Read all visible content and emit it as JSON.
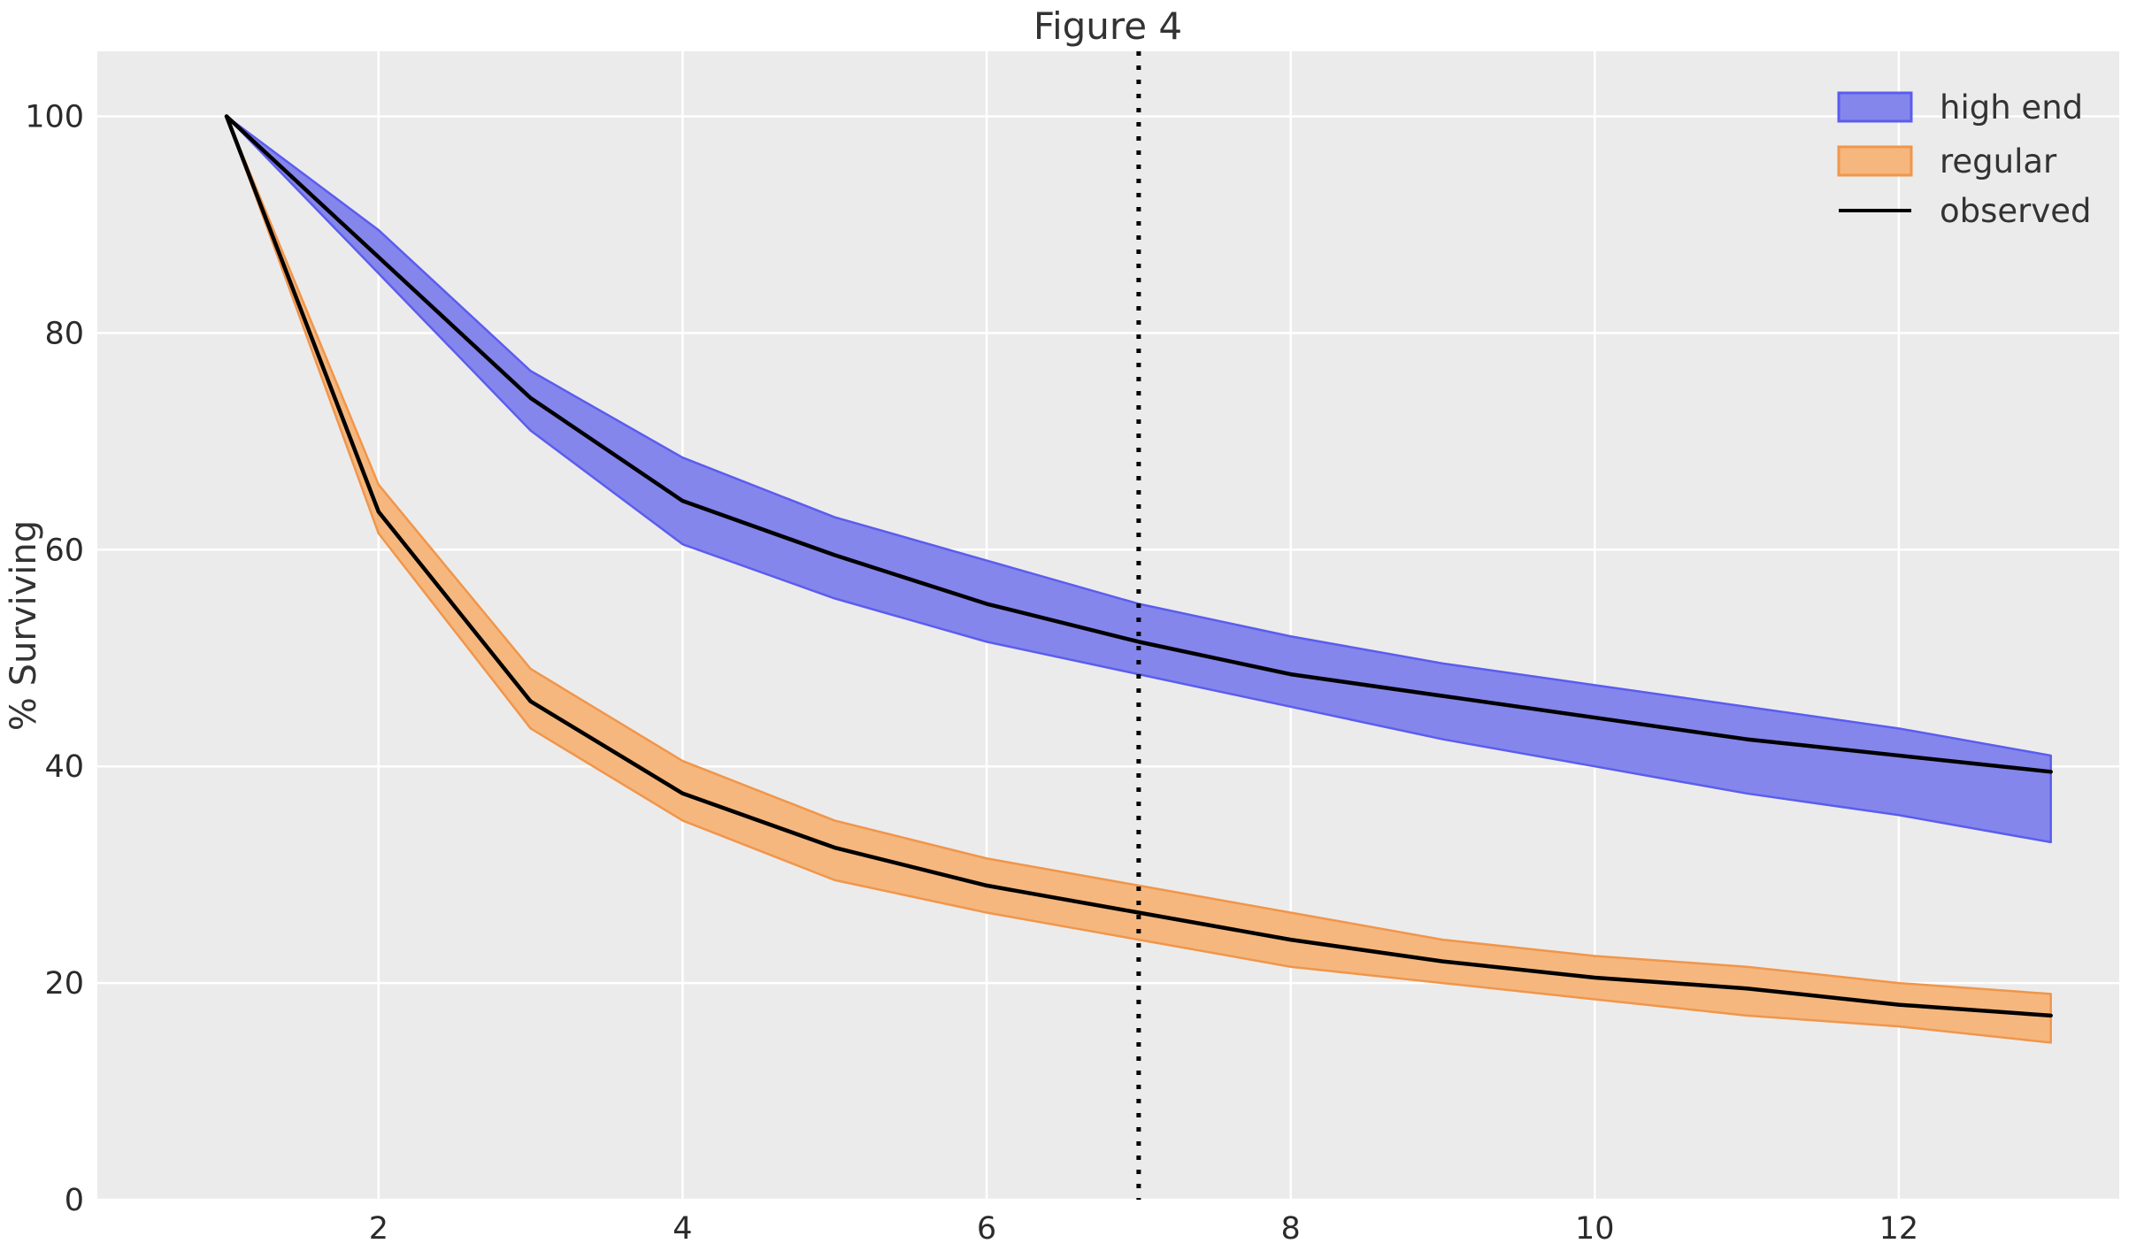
{
  "figure": {
    "background": "#ffffff",
    "plot_background": "#ECEBEB",
    "gridline_color": "#ffffff"
  },
  "chart_data": {
    "type": "line",
    "title": "Figure 4",
    "xlabel": "",
    "ylabel": "% Surviving",
    "xlim": [
      0.15,
      13.45
    ],
    "ylim": [
      0,
      106
    ],
    "x_ticks": [
      2,
      4,
      6,
      8,
      10,
      12
    ],
    "y_ticks": [
      0,
      20,
      40,
      60,
      80,
      100
    ],
    "grid": "on (white gridlines over grey panel, ggplot style)",
    "legend_position": "upper right, no frame",
    "x": [
      1,
      2,
      3,
      4,
      5,
      6,
      7,
      8,
      9,
      10,
      11,
      12,
      13
    ],
    "series": [
      {
        "name": "high end",
        "type": "band",
        "fill_color": "#8486EC",
        "edge_color": "#5B5DEE",
        "upper": [
          100,
          89.5,
          76.5,
          68.5,
          63,
          59,
          55,
          52,
          49.5,
          47.5,
          45.5,
          43.5,
          41
        ],
        "lower": [
          100,
          85.5,
          71,
          60.5,
          55.5,
          51.5,
          48.5,
          45.5,
          42.5,
          40,
          37.5,
          35.5,
          33
        ]
      },
      {
        "name": "regular",
        "type": "band",
        "fill_color": "#F5B77E",
        "edge_color": "#F0964B",
        "upper": [
          100,
          66,
          49,
          40.5,
          35,
          31.5,
          29,
          26.5,
          24,
          22.5,
          21.5,
          20,
          19
        ],
        "lower": [
          100,
          61.5,
          43.5,
          35,
          29.5,
          26.5,
          24,
          21.5,
          20,
          18.5,
          17,
          16,
          14.5
        ]
      },
      {
        "name": "observed (high end)",
        "type": "line",
        "color": "#000000",
        "values": [
          100,
          87,
          74,
          64.5,
          59.5,
          55,
          51.5,
          48.5,
          46.5,
          44.5,
          42.5,
          41,
          39.5
        ]
      },
      {
        "name": "observed (regular)",
        "type": "line",
        "color": "#000000",
        "values": [
          100,
          63.5,
          46,
          37.5,
          32.5,
          29,
          26.5,
          24,
          22,
          20.5,
          19.5,
          18,
          17
        ]
      }
    ],
    "annotations": [
      {
        "type": "vline",
        "x": 7,
        "style": "dotted",
        "color": "#000000"
      }
    ],
    "legend": [
      {
        "label": "high end",
        "swatch": "blue-band-patch"
      },
      {
        "label": "regular",
        "swatch": "orange-band-patch"
      },
      {
        "label": "observed",
        "swatch": "black-line"
      }
    ]
  }
}
